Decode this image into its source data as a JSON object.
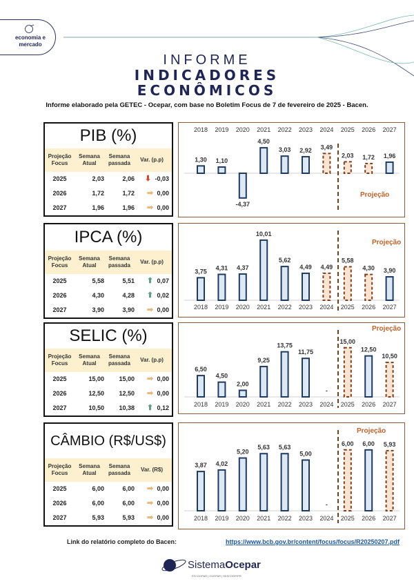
{
  "header": {
    "badge_line1": "economia e",
    "badge_line2": "mercado",
    "title_line1": "INFORME",
    "title_line2": "INDICADORES",
    "title_line3": "ECONÔMICOS",
    "subtitle": "Informe elaborado pela GETEC - Ocepar, com base no Boletim Focus de 7 de fevereiro de 2025 - Bacen."
  },
  "table_headers": {
    "col1_a": "Projeção",
    "col1_b": "Focus",
    "col2_a": "Semana",
    "col2_b": "Atual",
    "col3_a": "Semana",
    "col3_b": "passada"
  },
  "colors": {
    "up": "#5e9e88",
    "down": "#d9472b",
    "flat": "#e9b77a",
    "bar_fill": "#dce8f6",
    "bar_stroke": "#1f3a5f",
    "proj_fill": "#fbe3d2",
    "proj_stroke": "#7a3e1a",
    "proj_text": "#c0622a"
  },
  "indicators": [
    {
      "title": "PIB (%)",
      "var_label": "Var. (p.p)",
      "rows": [
        {
          "year": "2025",
          "atual": "2,03",
          "passada": "2,06",
          "trend": "down",
          "var": "-0,03"
        },
        {
          "year": "2026",
          "atual": "1,72",
          "passada": "1,72",
          "trend": "flat",
          "var": "0,00"
        },
        {
          "year": "2027",
          "atual": "1,96",
          "passada": "1,96",
          "trend": "flat",
          "var": "0,00"
        }
      ]
    },
    {
      "title": "IPCA (%)",
      "var_label": "Var. (p.p)",
      "rows": [
        {
          "year": "2025",
          "atual": "5,58",
          "passada": "5,51",
          "trend": "up",
          "var": "0,07"
        },
        {
          "year": "2026",
          "atual": "4,30",
          "passada": "4,28",
          "trend": "up",
          "var": "0,02"
        },
        {
          "year": "2027",
          "atual": "3,90",
          "passada": "3,90",
          "trend": "flat",
          "var": "0,00"
        }
      ]
    },
    {
      "title": "SELIC (%)",
      "var_label": "Var. (p.p)",
      "rows": [
        {
          "year": "2025",
          "atual": "15,00",
          "passada": "15,00",
          "trend": "flat",
          "var": "0,00"
        },
        {
          "year": "2026",
          "atual": "12,50",
          "passada": "12,50",
          "trend": "flat",
          "var": "0,00"
        },
        {
          "year": "2027",
          "atual": "10,50",
          "passada": "10,38",
          "trend": "up",
          "var": "0,12"
        }
      ]
    },
    {
      "title": "CÂMBIO (R$/US$)",
      "var_label": "Var. (R$)",
      "rows": [
        {
          "year": "2025",
          "atual": "6,00",
          "passada": "6,00",
          "trend": "flat",
          "var": "0,00"
        },
        {
          "year": "2026",
          "atual": "6,00",
          "passada": "6,00",
          "trend": "flat",
          "var": "0,00"
        },
        {
          "year": "2027",
          "atual": "5,93",
          "passada": "5,93",
          "trend": "flat",
          "var": "0,00"
        }
      ]
    }
  ],
  "chart_data": [
    {
      "type": "bar",
      "categories": [
        "2018",
        "2019",
        "2020",
        "2021",
        "2022",
        "2023",
        "2024",
        "2025",
        "2026",
        "2027"
      ],
      "values": [
        1.3,
        1.1,
        -4.37,
        4.5,
        3.03,
        2.92,
        3.49,
        2.03,
        1.72,
        1.96
      ],
      "labels": [
        "1,30",
        "1,10",
        "-4,37",
        "4,50",
        "3,03",
        "2,92",
        "3,49",
        "2,03",
        "1,72",
        "1,96"
      ],
      "projection_style": [
        false,
        false,
        false,
        false,
        false,
        false,
        true,
        true,
        true,
        false
      ],
      "annotation": "Projeção",
      "xaxis": "top",
      "annotation_position": "bottom-right"
    },
    {
      "type": "bar",
      "categories": [
        "2018",
        "2019",
        "2020",
        "2021",
        "2022",
        "2023",
        "2024",
        "2025",
        "2026",
        "2027"
      ],
      "values": [
        3.75,
        4.31,
        4.37,
        10.01,
        5.62,
        4.49,
        4.49,
        5.58,
        4.3,
        3.9
      ],
      "labels": [
        "3,75",
        "4,31",
        "4,37",
        "10,01",
        "5,62",
        "4,49",
        "4,49",
        "5,58",
        "4,30",
        "3,90"
      ],
      "projection_style": [
        false,
        false,
        false,
        false,
        false,
        false,
        true,
        true,
        true,
        false
      ],
      "annotation": "Projeção",
      "xaxis": "bottom",
      "annotation_position": "top-right"
    },
    {
      "type": "bar",
      "categories": [
        "2018",
        "2019",
        "2020",
        "2021",
        "2022",
        "2023",
        "2024",
        "2025",
        "2026",
        "2027"
      ],
      "values": [
        6.5,
        4.5,
        2.0,
        9.25,
        13.75,
        11.75,
        null,
        15.0,
        12.5,
        10.5
      ],
      "labels": [
        "6,50",
        "4,50",
        "2,00",
        "9,25",
        "13,75",
        "11,75",
        "-",
        "15,00",
        "12,50",
        "10,50"
      ],
      "projection_style": [
        false,
        false,
        false,
        false,
        false,
        false,
        false,
        true,
        false,
        true
      ],
      "annotation": "Projeção",
      "xaxis": "bottom",
      "annotation_position": "top-right"
    },
    {
      "type": "bar",
      "categories": [
        "2018",
        "2019",
        "2020",
        "2021",
        "2022",
        "2023",
        "2024",
        "2025",
        "2026",
        "2027"
      ],
      "values": [
        3.87,
        4.02,
        5.2,
        5.63,
        5.63,
        5.0,
        null,
        6.0,
        6.0,
        5.93
      ],
      "labels": [
        "3,87",
        "4,02",
        "5,20",
        "5,63",
        "5,63",
        "5,00",
        "-",
        "6,00",
        "6,00",
        "5,93"
      ],
      "projection_style": [
        false,
        false,
        false,
        false,
        false,
        false,
        false,
        true,
        false,
        true
      ],
      "annotation": "Projeção",
      "xaxis": "bottom",
      "annotation_position": "top-right"
    }
  ],
  "footer": {
    "link_label": "Link do relatório completo do Bacen:",
    "link_url": "https://www.bcb.gov.br/content/focus/focus/R20250207.pdf",
    "logo_text_a": "Sistema",
    "logo_text_b": "Ocepar",
    "logo_small": "FECOOPAR | OCEPAR | SESCOOP/PR"
  }
}
